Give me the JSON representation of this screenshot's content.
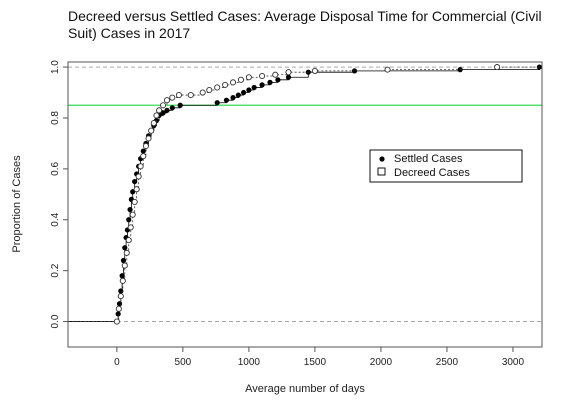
{
  "chart_data": {
    "type": "scatter",
    "title": "Decreed versus Settled Cases: Average Disposal Time for Commercial (Civil Suit) Cases in 2017",
    "xlabel": "Average number of days",
    "ylabel": "Proportion of Cases",
    "xlim": [
      -370,
      3220
    ],
    "ylim": [
      -0.1,
      1.02
    ],
    "x_ticks": [
      0,
      500,
      1000,
      1500,
      2000,
      2500,
      3000
    ],
    "y_ticks": [
      0.0,
      0.2,
      0.4,
      0.6,
      0.8,
      1.0
    ],
    "x_tick_labels": [
      "0",
      "500",
      "1000",
      "1500",
      "2000",
      "2500",
      "3000"
    ],
    "y_tick_labels": [
      "0.0",
      "0.2",
      "0.4",
      "0.6",
      "0.8",
      "1.0"
    ],
    "reference_lines": [
      {
        "y": 0.0,
        "style": "dashed",
        "color": "#aaaaaa"
      },
      {
        "y": 1.0,
        "style": "dashed",
        "color": "#aaaaaa"
      },
      {
        "y": 0.85,
        "style": "solid",
        "color": "#33dd55"
      }
    ],
    "legend": {
      "position": "right",
      "entries": [
        "Settled Cases",
        "Decreed Cases"
      ]
    },
    "grid": false,
    "series": [
      {
        "name": "Settled Cases",
        "marker": "filled-circle",
        "color": "#000000",
        "points": [
          [
            0,
            0.0
          ],
          [
            10,
            0.03
          ],
          [
            20,
            0.07
          ],
          [
            30,
            0.12
          ],
          [
            40,
            0.18
          ],
          [
            50,
            0.24
          ],
          [
            60,
            0.29
          ],
          [
            70,
            0.33
          ],
          [
            80,
            0.36
          ],
          [
            90,
            0.4
          ],
          [
            100,
            0.44
          ],
          [
            110,
            0.48
          ],
          [
            120,
            0.51
          ],
          [
            135,
            0.55
          ],
          [
            150,
            0.58
          ],
          [
            165,
            0.61
          ],
          [
            180,
            0.64
          ],
          [
            200,
            0.67
          ],
          [
            220,
            0.7
          ],
          [
            240,
            0.73
          ],
          [
            260,
            0.75
          ],
          [
            280,
            0.77
          ],
          [
            300,
            0.79
          ],
          [
            320,
            0.81
          ],
          [
            350,
            0.82
          ],
          [
            380,
            0.83
          ],
          [
            420,
            0.84
          ],
          [
            480,
            0.85
          ],
          [
            760,
            0.86
          ],
          [
            830,
            0.87
          ],
          [
            880,
            0.88
          ],
          [
            920,
            0.89
          ],
          [
            960,
            0.9
          ],
          [
            1000,
            0.91
          ],
          [
            1040,
            0.92
          ],
          [
            1100,
            0.93
          ],
          [
            1160,
            0.94
          ],
          [
            1220,
            0.95
          ],
          [
            1300,
            0.96
          ],
          [
            1450,
            0.98
          ],
          [
            1800,
            0.985
          ],
          [
            2600,
            0.99
          ],
          [
            3200,
            1.0
          ]
        ]
      },
      {
        "name": "Decreed Cases",
        "marker": "open-circle",
        "color": "#333333",
        "points": [
          [
            0,
            0.0
          ],
          [
            15,
            0.05
          ],
          [
            30,
            0.1
          ],
          [
            45,
            0.16
          ],
          [
            60,
            0.22
          ],
          [
            75,
            0.27
          ],
          [
            90,
            0.32
          ],
          [
            105,
            0.37
          ],
          [
            120,
            0.42
          ],
          [
            135,
            0.47
          ],
          [
            150,
            0.52
          ],
          [
            165,
            0.57
          ],
          [
            180,
            0.61
          ],
          [
            200,
            0.65
          ],
          [
            220,
            0.69
          ],
          [
            240,
            0.72
          ],
          [
            260,
            0.75
          ],
          [
            280,
            0.78
          ],
          [
            300,
            0.81
          ],
          [
            320,
            0.83
          ],
          [
            350,
            0.85
          ],
          [
            380,
            0.87
          ],
          [
            420,
            0.88
          ],
          [
            470,
            0.89
          ],
          [
            560,
            0.89
          ],
          [
            650,
            0.9
          ],
          [
            700,
            0.91
          ],
          [
            760,
            0.92
          ],
          [
            820,
            0.93
          ],
          [
            880,
            0.94
          ],
          [
            940,
            0.95
          ],
          [
            1000,
            0.96
          ],
          [
            1100,
            0.965
          ],
          [
            1200,
            0.97
          ],
          [
            1300,
            0.98
          ],
          [
            1500,
            0.985
          ],
          [
            2050,
            0.99
          ],
          [
            2880,
            1.0
          ]
        ]
      }
    ]
  }
}
